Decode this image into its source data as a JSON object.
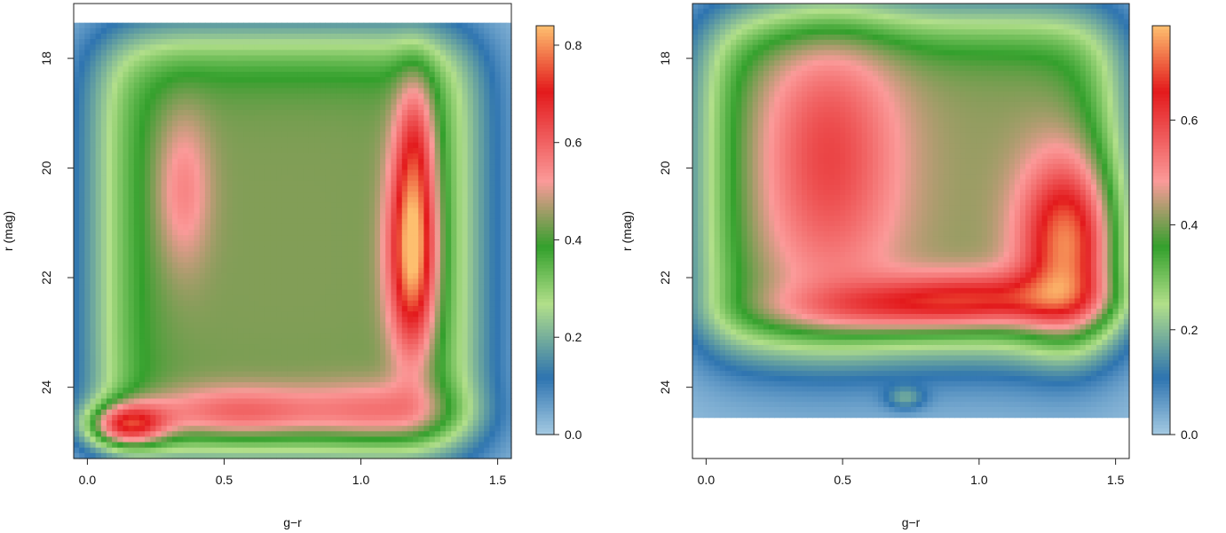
{
  "chart_data": [
    {
      "type": "heatmap",
      "title": "",
      "xlabel": "g−r",
      "ylabel": "r (mag)",
      "xlim": [
        -0.05,
        1.55
      ],
      "ylim": [
        25.3,
        17.0
      ],
      "y_data_top": 17.35,
      "y_data_bottom": 25.3,
      "y_inverted": true,
      "xticks": [
        {
          "value": 0.0,
          "label": "0.0"
        },
        {
          "value": 0.5,
          "label": "0.5"
        },
        {
          "value": 1.0,
          "label": "1.0"
        },
        {
          "value": 1.5,
          "label": "1.5"
        }
      ],
      "yticks": [
        {
          "value": 18,
          "label": "18"
        },
        {
          "value": 20,
          "label": "20"
        },
        {
          "value": 22,
          "label": "22"
        },
        {
          "value": 24,
          "label": "24"
        }
      ],
      "colorbar": {
        "min": 0.0,
        "max": 0.84,
        "ticks": [
          {
            "value": 0.0,
            "label": "0.0"
          },
          {
            "value": 0.2,
            "label": "0.2"
          },
          {
            "value": 0.4,
            "label": "0.4"
          },
          {
            "value": 0.6,
            "label": "0.6"
          },
          {
            "value": 0.8,
            "label": "0.8"
          }
        ]
      },
      "colors": {
        "low": "#a6cbe3",
        "blue": "#2e74b0",
        "green": "#33a02c",
        "lightgreen": "#b2df8a",
        "pink": "#fb9a99",
        "red": "#e31a1c",
        "high": "#fdbf6f"
      },
      "density_features": [
        {
          "kind": "box",
          "x": [
            0.05,
            1.4
          ],
          "y": [
            17.6,
            25.15
          ],
          "amp": 0.42,
          "soft": 0.08
        },
        {
          "kind": "blob",
          "x": 0.35,
          "y": 20.4,
          "sx": 0.07,
          "sy": 1.0,
          "amp": 0.12
        },
        {
          "kind": "blob",
          "x": 1.19,
          "y": 21.5,
          "sx": 0.06,
          "sy": 1.3,
          "amp": 0.45
        },
        {
          "kind": "blob",
          "x": 1.2,
          "y": 19.4,
          "sx": 0.05,
          "sy": 0.9,
          "amp": 0.15
        },
        {
          "kind": "blob",
          "x": 0.14,
          "y": 24.7,
          "sx": 0.1,
          "sy": 0.28,
          "amp": 0.42
        },
        {
          "kind": "blob",
          "x": 0.55,
          "y": 24.5,
          "sx": 0.25,
          "sy": 0.35,
          "amp": 0.22
        },
        {
          "kind": "blob",
          "x": 1.1,
          "y": 24.5,
          "sx": 0.2,
          "sy": 0.4,
          "amp": 0.18
        }
      ]
    },
    {
      "type": "heatmap",
      "title": "",
      "xlabel": "g−r",
      "ylabel": "r (mag)",
      "xlim": [
        -0.05,
        1.55
      ],
      "ylim": [
        25.3,
        17.0
      ],
      "y_data_top": 17.0,
      "y_data_bottom": 24.55,
      "y_inverted": true,
      "xticks": [
        {
          "value": 0.0,
          "label": "0.0"
        },
        {
          "value": 0.5,
          "label": "0.5"
        },
        {
          "value": 1.0,
          "label": "1.0"
        },
        {
          "value": 1.5,
          "label": "1.5"
        }
      ],
      "yticks": [
        {
          "value": 18,
          "label": "18"
        },
        {
          "value": 20,
          "label": "20"
        },
        {
          "value": 22,
          "label": "22"
        },
        {
          "value": 24,
          "label": "24"
        }
      ],
      "colorbar": {
        "min": 0.0,
        "max": 0.78,
        "ticks": [
          {
            "value": 0.0,
            "label": "0.0"
          },
          {
            "value": 0.2,
            "label": "0.2"
          },
          {
            "value": 0.4,
            "label": "0.4"
          },
          {
            "value": 0.6,
            "label": "0.6"
          }
        ]
      },
      "colors": {
        "low": "#a6cbe3",
        "blue": "#2e74b0",
        "green": "#33a02c",
        "lightgreen": "#b2df8a",
        "pink": "#fb9a99",
        "red": "#e31a1c",
        "high": "#fdbf6f"
      },
      "density_features": [
        {
          "kind": "box",
          "x": [
            0.0,
            1.5
          ],
          "y": [
            17.25,
            23.3
          ],
          "amp": 0.4,
          "soft": 0.08
        },
        {
          "kind": "blob",
          "x": 0.45,
          "y": 19.8,
          "sx": 0.18,
          "sy": 1.8,
          "amp": 0.18
        },
        {
          "kind": "blob",
          "x": 1.33,
          "y": 21.4,
          "sx": 0.12,
          "sy": 1.1,
          "amp": 0.36
        },
        {
          "kind": "blob",
          "x": 1.0,
          "y": 22.4,
          "sx": 0.3,
          "sy": 0.35,
          "amp": 0.25
        },
        {
          "kind": "blob",
          "x": 0.6,
          "y": 22.6,
          "sx": 0.3,
          "sy": 0.3,
          "amp": 0.12
        },
        {
          "kind": "blob",
          "x": 0.73,
          "y": 24.2,
          "sx": 0.05,
          "sy": 0.15,
          "amp": 0.12
        }
      ]
    }
  ]
}
